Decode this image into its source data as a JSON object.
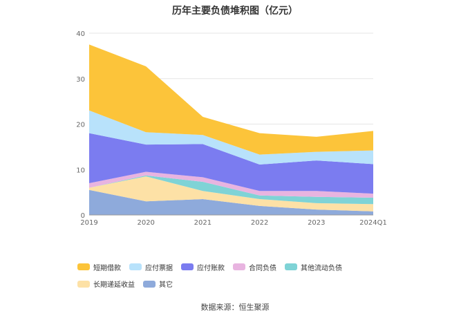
{
  "chart_data": {
    "type": "area",
    "stacked": true,
    "title": "历年主要负债堆积图（亿元）",
    "categories": [
      "2019",
      "2020",
      "2021",
      "2022",
      "2023",
      "2024Q1"
    ],
    "ylim": [
      0,
      40
    ],
    "yticks": [
      0,
      10,
      20,
      30,
      40
    ],
    "grid": true,
    "legend_position": "bottom",
    "series": [
      {
        "name": "其它",
        "color": "#8eaadb",
        "values": [
          5.5,
          3.0,
          3.5,
          2.0,
          1.2,
          0.8
        ]
      },
      {
        "name": "长期递延收益",
        "color": "#fde1a6",
        "values": [
          0.5,
          5.5,
          1.8,
          1.5,
          1.4,
          1.6
        ]
      },
      {
        "name": "其他流动负债",
        "color": "#7fd3d6",
        "values": [
          0.0,
          0.2,
          2.0,
          0.8,
          1.4,
          1.4
        ]
      },
      {
        "name": "合同负债",
        "color": "#e8b4e0",
        "values": [
          1.0,
          0.8,
          1.0,
          1.0,
          1.3,
          0.9
        ]
      },
      {
        "name": "应付账款",
        "color": "#7b7cf0",
        "values": [
          11.0,
          6.0,
          7.3,
          5.8,
          6.7,
          6.5
        ]
      },
      {
        "name": "应付票据",
        "color": "#b8e2fb",
        "values": [
          5.0,
          2.7,
          2.0,
          2.2,
          1.9,
          3.0
        ]
      },
      {
        "name": "短期借款",
        "color": "#fcc43a",
        "values": [
          14.5,
          14.5,
          4.0,
          4.7,
          3.3,
          4.3
        ]
      }
    ]
  },
  "source_text": "数据来源：恒生聚源"
}
